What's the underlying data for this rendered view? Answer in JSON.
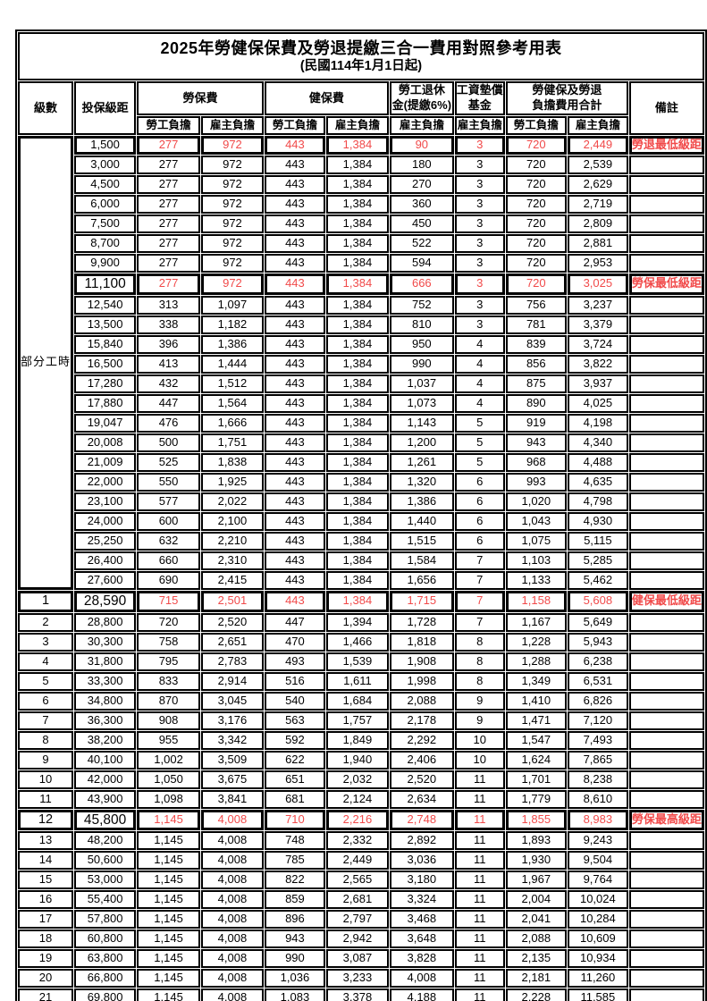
{
  "title": "2025年勞健保保費及勞退提繳三合一費用對照參考用表",
  "subtitle": "(民國114年1月1日起)",
  "colors": {
    "employee_column_orange": "#F8CA9C",
    "employer_column_lavender": "#DBD7EF",
    "highlight_red": "#F14A4A",
    "border_black": "#000000"
  },
  "columns": {
    "level": "級數",
    "bracket": "投保級距",
    "labor_group": "勞保費",
    "health_group": "健保費",
    "pension_group_line1": "勞工退休",
    "pension_group_line2": "金(提繳6%)",
    "fund_group_line1": "工資墊償",
    "fund_group_line2": "基金",
    "total_group_line1": "勞健保及勞退",
    "total_group_line2": "負擔費用合計",
    "employee": "勞工負擔",
    "employer": "雇主負擔",
    "remark": "備註"
  },
  "part_time_label": "部分工時",
  "rows": [
    {
      "level": "",
      "bracket": "1,500",
      "labor_employee": "277",
      "labor_employer": "972",
      "health_employee": "443",
      "health_employer": "1,384",
      "pension_employer": "90",
      "fund_employer": "3",
      "total_employee": "720",
      "total_employer": "2,449",
      "remark": "勞退最低級距",
      "highlight": true,
      "big": false
    },
    {
      "level": "",
      "bracket": "3,000",
      "labor_employee": "277",
      "labor_employer": "972",
      "health_employee": "443",
      "health_employer": "1,384",
      "pension_employer": "180",
      "fund_employer": "3",
      "total_employee": "720",
      "total_employer": "2,539",
      "remark": "",
      "highlight": false,
      "big": false
    },
    {
      "level": "",
      "bracket": "4,500",
      "labor_employee": "277",
      "labor_employer": "972",
      "health_employee": "443",
      "health_employer": "1,384",
      "pension_employer": "270",
      "fund_employer": "3",
      "total_employee": "720",
      "total_employer": "2,629",
      "remark": "",
      "highlight": false,
      "big": false
    },
    {
      "level": "",
      "bracket": "6,000",
      "labor_employee": "277",
      "labor_employer": "972",
      "health_employee": "443",
      "health_employer": "1,384",
      "pension_employer": "360",
      "fund_employer": "3",
      "total_employee": "720",
      "total_employer": "2,719",
      "remark": "",
      "highlight": false,
      "big": false
    },
    {
      "level": "",
      "bracket": "7,500",
      "labor_employee": "277",
      "labor_employer": "972",
      "health_employee": "443",
      "health_employer": "1,384",
      "pension_employer": "450",
      "fund_employer": "3",
      "total_employee": "720",
      "total_employer": "2,809",
      "remark": "",
      "highlight": false,
      "big": false
    },
    {
      "level": "",
      "bracket": "8,700",
      "labor_employee": "277",
      "labor_employer": "972",
      "health_employee": "443",
      "health_employer": "1,384",
      "pension_employer": "522",
      "fund_employer": "3",
      "total_employee": "720",
      "total_employer": "2,881",
      "remark": "",
      "highlight": false,
      "big": false
    },
    {
      "level": "",
      "bracket": "9,900",
      "labor_employee": "277",
      "labor_employer": "972",
      "health_employee": "443",
      "health_employer": "1,384",
      "pension_employer": "594",
      "fund_employer": "3",
      "total_employee": "720",
      "total_employer": "2,953",
      "remark": "",
      "highlight": false,
      "big": false
    },
    {
      "level": "",
      "bracket": "11,100",
      "labor_employee": "277",
      "labor_employer": "972",
      "health_employee": "443",
      "health_employer": "1,384",
      "pension_employer": "666",
      "fund_employer": "3",
      "total_employee": "720",
      "total_employer": "3,025",
      "remark": "勞保最低級距",
      "highlight": true,
      "big": true
    },
    {
      "level": "",
      "bracket": "12,540",
      "labor_employee": "313",
      "labor_employer": "1,097",
      "health_employee": "443",
      "health_employer": "1,384",
      "pension_employer": "752",
      "fund_employer": "3",
      "total_employee": "756",
      "total_employer": "3,237",
      "remark": "",
      "highlight": false,
      "big": false
    },
    {
      "level": "",
      "bracket": "13,500",
      "labor_employee": "338",
      "labor_employer": "1,182",
      "health_employee": "443",
      "health_employer": "1,384",
      "pension_employer": "810",
      "fund_employer": "3",
      "total_employee": "781",
      "total_employer": "3,379",
      "remark": "",
      "highlight": false,
      "big": false
    },
    {
      "level": "",
      "bracket": "15,840",
      "labor_employee": "396",
      "labor_employer": "1,386",
      "health_employee": "443",
      "health_employer": "1,384",
      "pension_employer": "950",
      "fund_employer": "4",
      "total_employee": "839",
      "total_employer": "3,724",
      "remark": "",
      "highlight": false,
      "big": false
    },
    {
      "level": "",
      "bracket": "16,500",
      "labor_employee": "413",
      "labor_employer": "1,444",
      "health_employee": "443",
      "health_employer": "1,384",
      "pension_employer": "990",
      "fund_employer": "4",
      "total_employee": "856",
      "total_employer": "3,822",
      "remark": "",
      "highlight": false,
      "big": false
    },
    {
      "level": "",
      "bracket": "17,280",
      "labor_employee": "432",
      "labor_employer": "1,512",
      "health_employee": "443",
      "health_employer": "1,384",
      "pension_employer": "1,037",
      "fund_employer": "4",
      "total_employee": "875",
      "total_employer": "3,937",
      "remark": "",
      "highlight": false,
      "big": false
    },
    {
      "level": "",
      "bracket": "17,880",
      "labor_employee": "447",
      "labor_employer": "1,564",
      "health_employee": "443",
      "health_employer": "1,384",
      "pension_employer": "1,073",
      "fund_employer": "4",
      "total_employee": "890",
      "total_employer": "4,025",
      "remark": "",
      "highlight": false,
      "big": false
    },
    {
      "level": "",
      "bracket": "19,047",
      "labor_employee": "476",
      "labor_employer": "1,666",
      "health_employee": "443",
      "health_employer": "1,384",
      "pension_employer": "1,143",
      "fund_employer": "5",
      "total_employee": "919",
      "total_employer": "4,198",
      "remark": "",
      "highlight": false,
      "big": false
    },
    {
      "level": "",
      "bracket": "20,008",
      "labor_employee": "500",
      "labor_employer": "1,751",
      "health_employee": "443",
      "health_employer": "1,384",
      "pension_employer": "1,200",
      "fund_employer": "5",
      "total_employee": "943",
      "total_employer": "4,340",
      "remark": "",
      "highlight": false,
      "big": false
    },
    {
      "level": "",
      "bracket": "21,009",
      "labor_employee": "525",
      "labor_employer": "1,838",
      "health_employee": "443",
      "health_employer": "1,384",
      "pension_employer": "1,261",
      "fund_employer": "5",
      "total_employee": "968",
      "total_employer": "4,488",
      "remark": "",
      "highlight": false,
      "big": false
    },
    {
      "level": "",
      "bracket": "22,000",
      "labor_employee": "550",
      "labor_employer": "1,925",
      "health_employee": "443",
      "health_employer": "1,384",
      "pension_employer": "1,320",
      "fund_employer": "6",
      "total_employee": "993",
      "total_employer": "4,635",
      "remark": "",
      "highlight": false,
      "big": false
    },
    {
      "level": "",
      "bracket": "23,100",
      "labor_employee": "577",
      "labor_employer": "2,022",
      "health_employee": "443",
      "health_employer": "1,384",
      "pension_employer": "1,386",
      "fund_employer": "6",
      "total_employee": "1,020",
      "total_employer": "4,798",
      "remark": "",
      "highlight": false,
      "big": false
    },
    {
      "level": "",
      "bracket": "24,000",
      "labor_employee": "600",
      "labor_employer": "2,100",
      "health_employee": "443",
      "health_employer": "1,384",
      "pension_employer": "1,440",
      "fund_employer": "6",
      "total_employee": "1,043",
      "total_employer": "4,930",
      "remark": "",
      "highlight": false,
      "big": false
    },
    {
      "level": "",
      "bracket": "25,250",
      "labor_employee": "632",
      "labor_employer": "2,210",
      "health_employee": "443",
      "health_employer": "1,384",
      "pension_employer": "1,515",
      "fund_employer": "6",
      "total_employee": "1,075",
      "total_employer": "5,115",
      "remark": "",
      "highlight": false,
      "big": false
    },
    {
      "level": "",
      "bracket": "26,400",
      "labor_employee": "660",
      "labor_employer": "2,310",
      "health_employee": "443",
      "health_employer": "1,384",
      "pension_employer": "1,584",
      "fund_employer": "7",
      "total_employee": "1,103",
      "total_employer": "5,285",
      "remark": "",
      "highlight": false,
      "big": false
    },
    {
      "level": "",
      "bracket": "27,600",
      "labor_employee": "690",
      "labor_employer": "2,415",
      "health_employee": "443",
      "health_employer": "1,384",
      "pension_employer": "1,656",
      "fund_employer": "7",
      "total_employee": "1,133",
      "total_employer": "5,462",
      "remark": "",
      "highlight": false,
      "big": false
    },
    {
      "level": "1",
      "bracket": "28,590",
      "labor_employee": "715",
      "labor_employer": "2,501",
      "health_employee": "443",
      "health_employer": "1,384",
      "pension_employer": "1,715",
      "fund_employer": "7",
      "total_employee": "1,158",
      "total_employer": "5,608",
      "remark": "健保最低級距",
      "highlight": true,
      "big": true
    },
    {
      "level": "2",
      "bracket": "28,800",
      "labor_employee": "720",
      "labor_employer": "2,520",
      "health_employee": "447",
      "health_employer": "1,394",
      "pension_employer": "1,728",
      "fund_employer": "7",
      "total_employee": "1,167",
      "total_employer": "5,649",
      "remark": "",
      "highlight": false,
      "big": false
    },
    {
      "level": "3",
      "bracket": "30,300",
      "labor_employee": "758",
      "labor_employer": "2,651",
      "health_employee": "470",
      "health_employer": "1,466",
      "pension_employer": "1,818",
      "fund_employer": "8",
      "total_employee": "1,228",
      "total_employer": "5,943",
      "remark": "",
      "highlight": false,
      "big": false
    },
    {
      "level": "4",
      "bracket": "31,800",
      "labor_employee": "795",
      "labor_employer": "2,783",
      "health_employee": "493",
      "health_employer": "1,539",
      "pension_employer": "1,908",
      "fund_employer": "8",
      "total_employee": "1,288",
      "total_employer": "6,238",
      "remark": "",
      "highlight": false,
      "big": false
    },
    {
      "level": "5",
      "bracket": "33,300",
      "labor_employee": "833",
      "labor_employer": "2,914",
      "health_employee": "516",
      "health_employer": "1,611",
      "pension_employer": "1,998",
      "fund_employer": "8",
      "total_employee": "1,349",
      "total_employer": "6,531",
      "remark": "",
      "highlight": false,
      "big": false
    },
    {
      "level": "6",
      "bracket": "34,800",
      "labor_employee": "870",
      "labor_employer": "3,045",
      "health_employee": "540",
      "health_employer": "1,684",
      "pension_employer": "2,088",
      "fund_employer": "9",
      "total_employee": "1,410",
      "total_employer": "6,826",
      "remark": "",
      "highlight": false,
      "big": false
    },
    {
      "level": "7",
      "bracket": "36,300",
      "labor_employee": "908",
      "labor_employer": "3,176",
      "health_employee": "563",
      "health_employer": "1,757",
      "pension_employer": "2,178",
      "fund_employer": "9",
      "total_employee": "1,471",
      "total_employer": "7,120",
      "remark": "",
      "highlight": false,
      "big": false
    },
    {
      "level": "8",
      "bracket": "38,200",
      "labor_employee": "955",
      "labor_employer": "3,342",
      "health_employee": "592",
      "health_employer": "1,849",
      "pension_employer": "2,292",
      "fund_employer": "10",
      "total_employee": "1,547",
      "total_employer": "7,493",
      "remark": "",
      "highlight": false,
      "big": false
    },
    {
      "level": "9",
      "bracket": "40,100",
      "labor_employee": "1,002",
      "labor_employer": "3,509",
      "health_employee": "622",
      "health_employer": "1,940",
      "pension_employer": "2,406",
      "fund_employer": "10",
      "total_employee": "1,624",
      "total_employer": "7,865",
      "remark": "",
      "highlight": false,
      "big": false
    },
    {
      "level": "10",
      "bracket": "42,000",
      "labor_employee": "1,050",
      "labor_employer": "3,675",
      "health_employee": "651",
      "health_employer": "2,032",
      "pension_employer": "2,520",
      "fund_employer": "11",
      "total_employee": "1,701",
      "total_employer": "8,238",
      "remark": "",
      "highlight": false,
      "big": false
    },
    {
      "level": "11",
      "bracket": "43,900",
      "labor_employee": "1,098",
      "labor_employer": "3,841",
      "health_employee": "681",
      "health_employer": "2,124",
      "pension_employer": "2,634",
      "fund_employer": "11",
      "total_employee": "1,779",
      "total_employer": "8,610",
      "remark": "",
      "highlight": false,
      "big": false
    },
    {
      "level": "12",
      "bracket": "45,800",
      "labor_employee": "1,145",
      "labor_employer": "4,008",
      "health_employee": "710",
      "health_employer": "2,216",
      "pension_employer": "2,748",
      "fund_employer": "11",
      "total_employee": "1,855",
      "total_employer": "8,983",
      "remark": "勞保最高級距",
      "highlight": true,
      "big": true
    },
    {
      "level": "13",
      "bracket": "48,200",
      "labor_employee": "1,145",
      "labor_employer": "4,008",
      "health_employee": "748",
      "health_employer": "2,332",
      "pension_employer": "2,892",
      "fund_employer": "11",
      "total_employee": "1,893",
      "total_employer": "9,243",
      "remark": "",
      "highlight": false,
      "big": false
    },
    {
      "level": "14",
      "bracket": "50,600",
      "labor_employee": "1,145",
      "labor_employer": "4,008",
      "health_employee": "785",
      "health_employer": "2,449",
      "pension_employer": "3,036",
      "fund_employer": "11",
      "total_employee": "1,930",
      "total_employer": "9,504",
      "remark": "",
      "highlight": false,
      "big": false
    },
    {
      "level": "15",
      "bracket": "53,000",
      "labor_employee": "1,145",
      "labor_employer": "4,008",
      "health_employee": "822",
      "health_employer": "2,565",
      "pension_employer": "3,180",
      "fund_employer": "11",
      "total_employee": "1,967",
      "total_employer": "9,764",
      "remark": "",
      "highlight": false,
      "big": false
    },
    {
      "level": "16",
      "bracket": "55,400",
      "labor_employee": "1,145",
      "labor_employer": "4,008",
      "health_employee": "859",
      "health_employer": "2,681",
      "pension_employer": "3,324",
      "fund_employer": "11",
      "total_employee": "2,004",
      "total_employer": "10,024",
      "remark": "",
      "highlight": false,
      "big": false
    },
    {
      "level": "17",
      "bracket": "57,800",
      "labor_employee": "1,145",
      "labor_employer": "4,008",
      "health_employee": "896",
      "health_employer": "2,797",
      "pension_employer": "3,468",
      "fund_employer": "11",
      "total_employee": "2,041",
      "total_employer": "10,284",
      "remark": "",
      "highlight": false,
      "big": false
    },
    {
      "level": "18",
      "bracket": "60,800",
      "labor_employee": "1,145",
      "labor_employer": "4,008",
      "health_employee": "943",
      "health_employer": "2,942",
      "pension_employer": "3,648",
      "fund_employer": "11",
      "total_employee": "2,088",
      "total_employer": "10,609",
      "remark": "",
      "highlight": false,
      "big": false
    },
    {
      "level": "19",
      "bracket": "63,800",
      "labor_employee": "1,145",
      "labor_employer": "4,008",
      "health_employee": "990",
      "health_employer": "3,087",
      "pension_employer": "3,828",
      "fund_employer": "11",
      "total_employee": "2,135",
      "total_employer": "10,934",
      "remark": "",
      "highlight": false,
      "big": false
    },
    {
      "level": "20",
      "bracket": "66,800",
      "labor_employee": "1,145",
      "labor_employer": "4,008",
      "health_employee": "1,036",
      "health_employer": "3,233",
      "pension_employer": "4,008",
      "fund_employer": "11",
      "total_employee": "2,181",
      "total_employer": "11,260",
      "remark": "",
      "highlight": false,
      "big": false
    },
    {
      "level": "21",
      "bracket": "69,800",
      "labor_employee": "1,145",
      "labor_employer": "4,008",
      "health_employee": "1,083",
      "health_employer": "3,378",
      "pension_employer": "4,188",
      "fund_employer": "11",
      "total_employee": "2,228",
      "total_employer": "11,585",
      "remark": "",
      "highlight": false,
      "big": false
    }
  ]
}
